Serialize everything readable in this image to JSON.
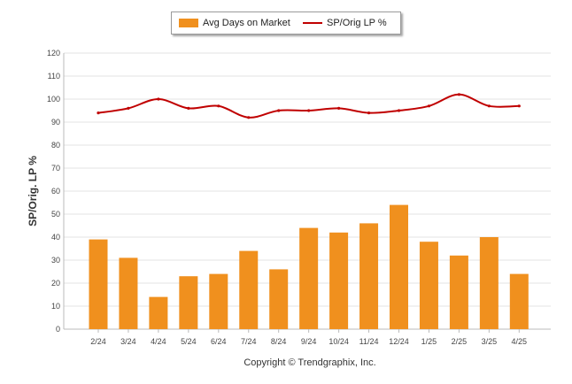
{
  "legend": {
    "bar_label": "Avg Days on Market",
    "line_label": "SP/Orig LP %"
  },
  "copyright": "Copyright © Trendgraphix, Inc.",
  "chart_data": {
    "type": "bar",
    "ylabel": "SP/Orig. LP %",
    "xlabel": "",
    "ylim": [
      0,
      120
    ],
    "yticks": [
      0,
      10,
      20,
      30,
      40,
      50,
      60,
      70,
      80,
      90,
      100,
      110,
      120
    ],
    "grid": true,
    "legend_position": "top-center",
    "categories": [
      "2/24",
      "3/24",
      "4/24",
      "5/24",
      "6/24",
      "7/24",
      "8/24",
      "9/24",
      "10/24",
      "11/24",
      "12/24",
      "1/25",
      "2/25",
      "3/25",
      "4/25"
    ],
    "series": [
      {
        "name": "Avg Days on Market",
        "type": "bar",
        "color": "#f0901e",
        "values": [
          39,
          31,
          14,
          23,
          24,
          34,
          26,
          44,
          42,
          46,
          54,
          38,
          32,
          40,
          24
        ]
      },
      {
        "name": "SP/Orig LP %",
        "type": "line",
        "color": "#c00000",
        "values": [
          94,
          96,
          100,
          96,
          97,
          92,
          95,
          95,
          96,
          94,
          95,
          97,
          102,
          97,
          97
        ]
      }
    ]
  }
}
